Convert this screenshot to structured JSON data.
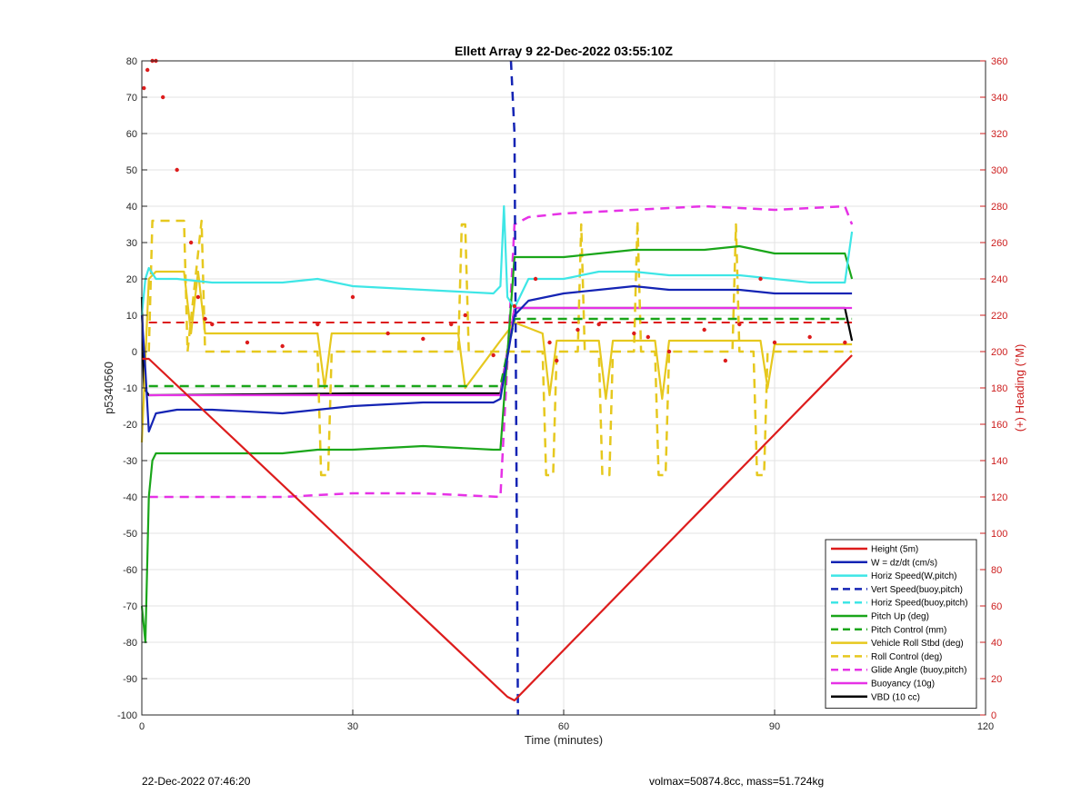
{
  "footer": {
    "left": "22-Dec-2022 07:46:20",
    "right": "volmax=50874.8cc, mass=51.724kg"
  },
  "chart_data": {
    "type": "line",
    "title": "Ellett Array 9 22-Dec-2022 03:55:10Z",
    "xlabel": "Time (minutes)",
    "ylabel": "p5340560",
    "y2label": "(+) Heading (°M)",
    "xlim": [
      0,
      120
    ],
    "ylim": [
      -100,
      80
    ],
    "y2lim": [
      0,
      360
    ],
    "xticks": [
      0,
      30,
      60,
      90,
      120
    ],
    "yticks": [
      -100,
      -90,
      -80,
      -70,
      -60,
      -50,
      -40,
      -30,
      -20,
      -10,
      0,
      10,
      20,
      30,
      40,
      50,
      60,
      70,
      80
    ],
    "y2ticks": [
      0,
      20,
      40,
      60,
      80,
      100,
      120,
      140,
      160,
      180,
      200,
      220,
      240,
      260,
      280,
      300,
      320,
      340,
      360
    ],
    "grid": true,
    "legend_position": "bottom-right",
    "colors": {
      "red": "#dd1c1c",
      "blue": "#1424b4",
      "cyan": "#3ee6e6",
      "green": "#1aa61a",
      "yellow": "#e6c81e",
      "magenta": "#e632e6",
      "black": "#000000",
      "axis2": "#cc1c1c"
    },
    "series": [
      {
        "name": "Height (5m)",
        "color": "#dd1c1c",
        "dash": false,
        "x": [
          0,
          1,
          52,
          53,
          101
        ],
        "y": [
          -2,
          -2,
          -95,
          -96,
          -1
        ]
      },
      {
        "name": "W = dz/dt (cm/s)",
        "color": "#1424b4",
        "dash": false,
        "x": [
          0,
          0.5,
          1,
          2,
          5,
          10,
          20,
          25,
          30,
          40,
          50,
          51,
          53,
          55,
          60,
          65,
          70,
          75,
          80,
          85,
          90,
          95,
          100,
          101
        ],
        "y": [
          10,
          -5,
          -22,
          -17,
          -16,
          -16,
          -17,
          -16,
          -15,
          -14,
          -14,
          -13,
          10,
          14,
          16,
          17,
          18,
          17,
          17,
          17,
          16,
          16,
          16,
          16
        ]
      },
      {
        "name": "Horiz Speed(W,pitch)",
        "color": "#3ee6e6",
        "dash": false,
        "x": [
          0,
          0.5,
          1,
          2,
          5,
          10,
          20,
          25,
          30,
          40,
          50,
          51,
          51.5,
          52,
          53,
          55,
          60,
          65,
          70,
          75,
          80,
          85,
          90,
          95,
          100,
          101
        ],
        "y": [
          10,
          20,
          23,
          20,
          20,
          19,
          19,
          20,
          18,
          17,
          16,
          18,
          40,
          15,
          12,
          20,
          20,
          22,
          22,
          21,
          21,
          21,
          20,
          19,
          19,
          33
        ]
      },
      {
        "name": "Vert Speed(buoy,pitch)",
        "color": "#1424b4",
        "dash": true,
        "x": [
          52.5,
          53,
          53.5
        ],
        "y": [
          80,
          60,
          -100
        ]
      },
      {
        "name": "Horiz Speed(buoy,pitch)",
        "color": "#3ee6e6",
        "dash": true,
        "x": [],
        "y": []
      },
      {
        "name": "Pitch Up (deg)",
        "color": "#1aa61a",
        "dash": false,
        "x": [
          0,
          0.5,
          1,
          1.5,
          2,
          5,
          10,
          20,
          25,
          30,
          40,
          50,
          51,
          53,
          55,
          60,
          65,
          70,
          75,
          80,
          85,
          90,
          95,
          100,
          101
        ],
        "y": [
          -70,
          -80,
          -40,
          -30,
          -28,
          -28,
          -28,
          -28,
          -27,
          -27,
          -26,
          -27,
          -27,
          26,
          26,
          26,
          27,
          28,
          28,
          28,
          29,
          27,
          27,
          27,
          20
        ]
      },
      {
        "name": "Pitch Control (mm)",
        "color": "#1aa61a",
        "dash": true,
        "x": [
          1,
          51,
          53,
          101
        ],
        "y": [
          -9.5,
          -9.5,
          9,
          9
        ]
      },
      {
        "name": "Vehicle Roll Stbd (deg)",
        "color": "#e6c81e",
        "dash": false,
        "x": [
          0,
          1,
          2,
          6,
          7,
          8,
          9,
          25,
          26,
          27,
          45,
          46,
          51,
          53,
          57,
          58,
          59,
          65,
          66,
          67,
          73,
          74,
          75,
          88,
          89,
          90,
          100,
          101
        ],
        "y": [
          -25,
          20,
          22,
          22,
          5,
          22,
          5,
          5,
          -10,
          5,
          5,
          -10,
          3,
          8,
          5,
          -12,
          3,
          3,
          -13,
          3,
          3,
          -13,
          3,
          3,
          -10,
          2,
          2,
          2
        ]
      },
      {
        "name": "Roll Control (deg)",
        "color": "#e6c81e",
        "dash": true,
        "x": [
          1,
          1.5,
          6,
          6.5,
          8.5,
          9,
          25,
          25.5,
          26.5,
          27,
          45,
          45.5,
          46,
          46.5,
          57,
          57.5,
          58.5,
          59,
          62,
          62.5,
          63,
          65,
          65.5,
          66.5,
          67,
          70,
          70.5,
          71,
          73,
          73.5,
          74.5,
          75,
          84,
          84.5,
          85,
          87,
          87.5,
          88.5,
          89,
          101
        ],
        "y": [
          0,
          36,
          36,
          0,
          36,
          0,
          0,
          -34,
          -34,
          0,
          0,
          35,
          35,
          0,
          0,
          -34,
          -34,
          0,
          0,
          35,
          0,
          0,
          -34,
          -34,
          0,
          0,
          36,
          0,
          0,
          -34,
          -34,
          0,
          0,
          35,
          0,
          0,
          -34,
          -34,
          0,
          0
        ]
      },
      {
        "name": "Glide Angle (buoy,pitch)",
        "color": "#e632e6",
        "dash": true,
        "x": [
          1,
          2,
          10,
          20,
          30,
          40,
          51,
          53,
          55,
          60,
          70,
          80,
          90,
          100,
          101
        ],
        "y": [
          -40,
          -40,
          -40,
          -40,
          -39,
          -39,
          -40,
          35,
          37,
          38,
          39,
          40,
          39,
          40,
          35
        ]
      },
      {
        "name": "Buoyancy (10g)",
        "color": "#e632e6",
        "dash": false,
        "x": [
          1,
          30,
          51,
          53,
          101
        ],
        "y": [
          -12,
          -12,
          -12,
          12,
          12
        ]
      },
      {
        "name": "VBD (10 cc)",
        "color": "#000000",
        "dash": false,
        "x": [
          0,
          0.3,
          1,
          30,
          51,
          53,
          100,
          101
        ],
        "y": [
          15,
          -10,
          -12,
          -11.5,
          -11.5,
          12,
          12,
          3
        ]
      }
    ],
    "heading": {
      "axis": "right",
      "color": "#dd1c1c",
      "marker": "dots",
      "x": [
        0.3,
        0.8,
        1.5,
        2,
        3,
        5,
        7,
        8,
        9,
        10,
        15,
        20,
        25,
        30,
        35,
        40,
        44,
        46,
        50,
        53,
        56,
        58,
        59,
        62,
        65,
        70,
        72,
        75,
        80,
        83,
        85,
        88,
        90,
        95,
        100
      ],
      "y": [
        345,
        355,
        360,
        360,
        340,
        300,
        260,
        230,
        218,
        215,
        205,
        203,
        215,
        230,
        210,
        207,
        215,
        220,
        198,
        225,
        240,
        205,
        195,
        212,
        215,
        210,
        208,
        200,
        212,
        195,
        215,
        240,
        205,
        208,
        205
      ]
    },
    "heading_setpoint": {
      "name": "",
      "color": "#dd1c1c",
      "dash": true,
      "value": 216,
      "x": [
        1,
        101
      ]
    }
  }
}
